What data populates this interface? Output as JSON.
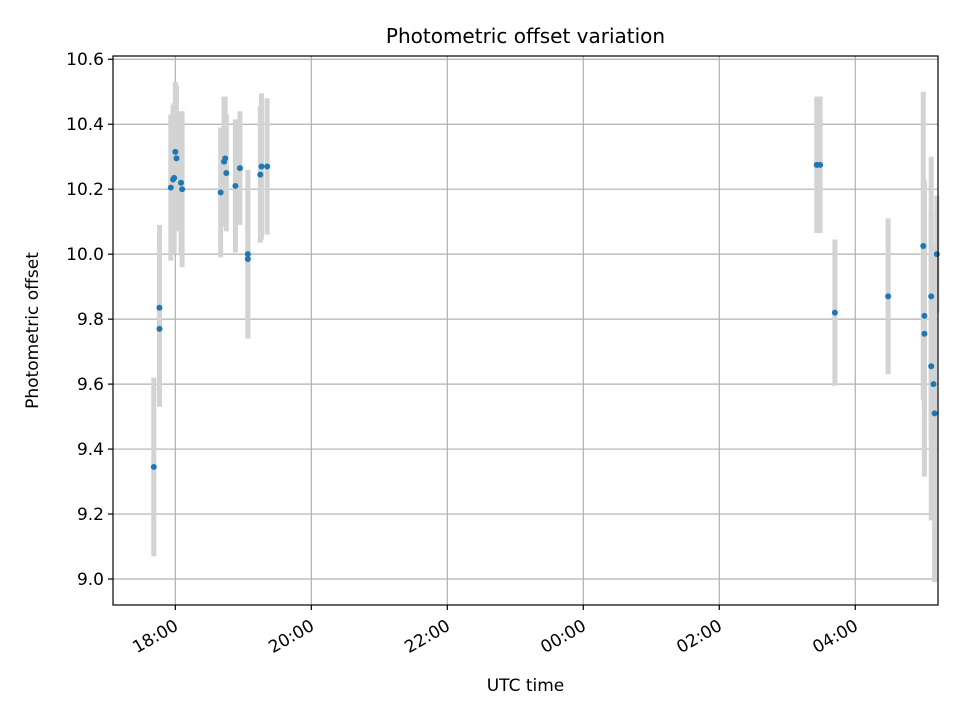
{
  "chart_data": {
    "type": "scatter",
    "title": "Photometric offset variation",
    "xlabel": "UTC time",
    "ylabel": "Photometric offset",
    "grid": true,
    "xlim": [
      "17:05",
      "05:13"
    ],
    "ylim": [
      8.92,
      10.61
    ],
    "xticks": [
      "18:00",
      "20:00",
      "22:00",
      "00:00",
      "02:00",
      "04:00"
    ],
    "yticks": [
      "9.0",
      "9.2",
      "9.4",
      "9.6",
      "9.8",
      "10.0",
      "10.2",
      "10.4",
      "10.6"
    ],
    "colors": {
      "point": "#1f77b4",
      "errorbar": "#d3d3d3",
      "grid": "#b0b0b0"
    },
    "series": [
      {
        "points": [
          {
            "time": "17:41",
            "y": 9.345,
            "err": 0.275
          },
          {
            "time": "17:46",
            "y": 9.77,
            "err": 0.24
          },
          {
            "time": "17:46",
            "y": 9.835,
            "err": 0.255
          },
          {
            "time": "17:56",
            "y": 10.205,
            "err": 0.225
          },
          {
            "time": "17:58",
            "y": 10.23,
            "err": 0.23
          },
          {
            "time": "17:59",
            "y": 10.235,
            "err": 0.23
          },
          {
            "time": "18:00",
            "y": 10.315,
            "err": 0.215
          },
          {
            "time": "18:01",
            "y": 10.295,
            "err": 0.225
          },
          {
            "time": "18:05",
            "y": 10.22,
            "err": 0.22
          },
          {
            "time": "18:06",
            "y": 10.2,
            "err": 0.24
          },
          {
            "time": "18:40",
            "y": 10.19,
            "err": 0.2
          },
          {
            "time": "18:43",
            "y": 10.285,
            "err": 0.2
          },
          {
            "time": "18:44",
            "y": 10.295,
            "err": 0.19
          },
          {
            "time": "18:45",
            "y": 10.25,
            "err": 0.18
          },
          {
            "time": "18:53",
            "y": 10.21,
            "err": 0.205
          },
          {
            "time": "18:57",
            "y": 10.265,
            "err": 0.175
          },
          {
            "time": "19:04",
            "y": 10.0,
            "err": 0.26
          },
          {
            "time": "19:04",
            "y": 9.985,
            "err": 0.24
          },
          {
            "time": "19:15",
            "y": 10.245,
            "err": 0.21
          },
          {
            "time": "19:16",
            "y": 10.27,
            "err": 0.225
          },
          {
            "time": "19:21",
            "y": 10.27,
            "err": 0.21
          },
          {
            "time": "03:26",
            "y": 10.275,
            "err": 0.21
          },
          {
            "time": "03:29",
            "y": 10.275,
            "err": 0.21
          },
          {
            "time": "03:42",
            "y": 9.82,
            "err": 0.225
          },
          {
            "time": "04:29",
            "y": 9.87,
            "err": 0.24
          },
          {
            "time": "05:00",
            "y": 10.025,
            "err": 0.475
          },
          {
            "time": "05:01",
            "y": 9.81,
            "err": 0.42
          },
          {
            "time": "05:01",
            "y": 9.755,
            "err": 0.44
          },
          {
            "time": "05:07",
            "y": 9.655,
            "err": 0.475
          },
          {
            "time": "05:07",
            "y": 9.87,
            "err": 0.43
          },
          {
            "time": "05:09",
            "y": 9.6,
            "err": 0.33
          },
          {
            "time": "05:10",
            "y": 9.51,
            "err": 0.52
          },
          {
            "time": "05:12",
            "y": 10.0,
            "err": 0.18
          }
        ]
      }
    ]
  }
}
